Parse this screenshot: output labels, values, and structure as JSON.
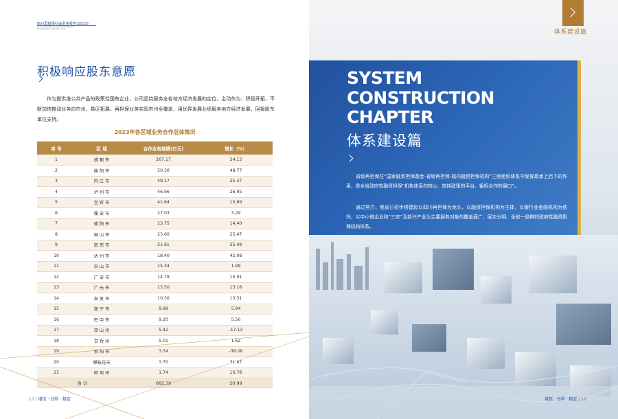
{
  "left_page": {
    "header_cn": "四川再担保社会责任报告(2023)",
    "header_en": "SICHUAN CREDIT RE-GUARANTEE SOCIAL RESPONSIBILITY REPORT (2023)",
    "section_title": "积极响应股东意愿",
    "intro": "作为提供准公共产品的政策性国有企业，公司坚持服务全省地方经济发展的定位，主动作为、积极开拓，不断加快推动业务向市州、县区拓展，再担保业务实现市州全覆盖，用优异发展业绩服务地方经济发展、回报股东单位支持。",
    "table_title": "2023年各区域业务合作总体情况",
    "table": {
      "headers": [
        "序 号",
        "区 域",
        "合作业务规模(亿元)",
        "增长（%）"
      ],
      "rows": [
        [
          "1",
          "成 都 市",
          "267.17",
          "24.13"
        ],
        [
          "2",
          "绵 阳 市",
          "50.30",
          "48.77"
        ],
        [
          "3",
          "内 江 市",
          "49.17",
          "25.37"
        ],
        [
          "4",
          "泸 州 市",
          "46.96",
          "26.95"
        ],
        [
          "5",
          "宜 宾 市",
          "41.64",
          "10.89"
        ],
        [
          "6",
          "雅 安 市",
          "27.03",
          "3.29"
        ],
        [
          "7",
          "德 阳 市",
          "23.75",
          "14.40"
        ],
        [
          "8",
          "眉 山 市",
          "23.60",
          "25.47"
        ],
        [
          "9",
          "南 充 市",
          "21.61",
          "25.49"
        ],
        [
          "10",
          "达 州 市",
          "18.40",
          "42.08"
        ],
        [
          "11",
          "乐 山 市",
          "15.34",
          "1.99"
        ],
        [
          "12",
          "广 安 市",
          "14.79",
          "15.91"
        ],
        [
          "13",
          "广 元 市",
          "13.50",
          "13.16"
        ],
        [
          "14",
          "自 贡 市",
          "10.30",
          "13.31"
        ],
        [
          "15",
          "遂 宁 市",
          "9.99",
          "5.94"
        ],
        [
          "16",
          "巴 中 市",
          "9.20",
          "5.50"
        ],
        [
          "17",
          "凉 山 州",
          "5.42",
          "-17.13"
        ],
        [
          "18",
          "甘 孜 州",
          "5.01",
          "1.62"
        ],
        [
          "19",
          "资 阳 市",
          "3.74",
          "-38.08"
        ],
        [
          "20",
          "攀枝花市",
          "3.70",
          "31.67"
        ],
        [
          "21",
          "阿 坝 州",
          "1.74",
          "16.78"
        ]
      ],
      "total_label": "合   计",
      "total_value": "662.39",
      "total_growth": "20.99"
    },
    "footer_num": "17",
    "footer_text": "/ 增信 · 分险 · 稳定"
  },
  "right_page": {
    "tab_label": "体系建设篇",
    "en_title_line1": "SYSTEM",
    "en_title_line2": "CONSTRUCTION",
    "en_title_line3": "CHAPTER",
    "cn_title": "体系建设篇",
    "para1": "省级再担保在“国家融资担保基金-省级再担保-辖内融资担保机构”三层组织体系中发挥着承上启下的作用，是全省政府性融资担保“机构体系的核心、扶持政策的平台、银担合作的窗口”。",
    "para2": "通过努力，我省已初步搭建起以四川再担保为龙头，以融资担保机构为主体，以银行业金融机构为依托，以中小微企业和“三农”及新兴产业为主要服务对象的覆盖面广、层次分明、全省一盘棋的政府性融资担保机构体系。",
    "footer_text": "增信 · 分险 · 稳定 /",
    "footer_num": "18"
  },
  "colors": {
    "brand_blue": "#1f4fa0",
    "gold": "#b07d35",
    "panel_blue": "#2460b4",
    "accent_yellow": "#d9b24a"
  }
}
